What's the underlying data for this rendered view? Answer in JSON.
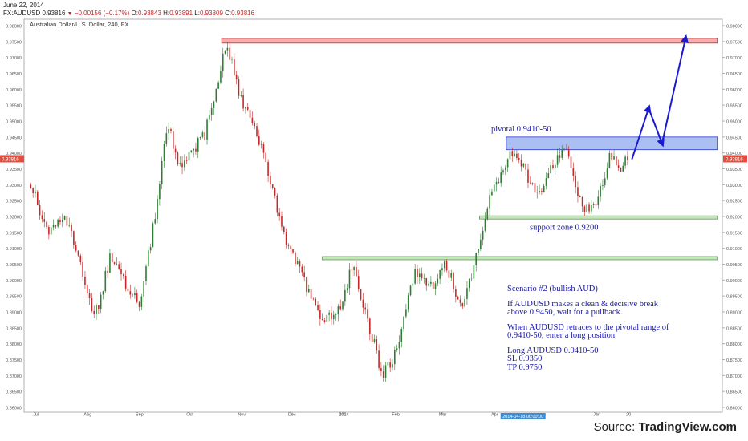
{
  "header": {
    "date": "June 22, 2014",
    "symbol": "FX:AUDUSD",
    "last": "0.93816",
    "change": "−0.00156 (−0.17%)",
    "open_label": "O:",
    "open": "0.93843",
    "high_label": "H:",
    "high": "0.93891",
    "low_label": "L:",
    "low": "0.93809",
    "close_label": "C:",
    "close": "0.93816"
  },
  "chart_data": {
    "type": "candlestick",
    "title": "Australian Dollar/U.S. Dollar, 240, FX",
    "y_range": [
      0.865,
      0.98
    ],
    "y_ticks": [
      "0.98000",
      "0.97500",
      "0.97000",
      "0.96500",
      "0.96000",
      "0.95500",
      "0.95000",
      "0.94500",
      "0.94000",
      "0.93500",
      "0.93000",
      "0.92500",
      "0.92000",
      "0.91500",
      "0.91000",
      "0.90500",
      "0.90000",
      "0.89500",
      "0.89000",
      "0.88500",
      "0.88000",
      "0.87500",
      "0.87000",
      "0.86500",
      "0.86000"
    ],
    "x_ticks": [
      "Jul",
      "Aug",
      "Sep",
      "Oct",
      "Nov",
      "Dec",
      "2014",
      "Feb",
      "Mar",
      "Apr",
      "Jun",
      "20"
    ],
    "last_price_label": "0.93816",
    "last_price": 0.93816,
    "cursor_date_label": "2014-04-18 00:00:00",
    "price_path": [
      [
        "2013-06-28",
        0.93
      ],
      [
        "2013-07-08",
        0.915
      ],
      [
        "2013-07-18",
        0.92
      ],
      [
        "2013-07-25",
        0.91
      ],
      [
        "2013-08-05",
        0.888
      ],
      [
        "2013-08-15",
        0.908
      ],
      [
        "2013-08-22",
        0.9
      ],
      [
        "2013-09-01",
        0.892
      ],
      [
        "2013-09-10",
        0.92
      ],
      [
        "2013-09-18",
        0.95
      ],
      [
        "2013-09-24",
        0.935
      ],
      [
        "2013-10-01",
        0.94
      ],
      [
        "2013-10-10",
        0.946
      ],
      [
        "2013-10-23",
        0.975
      ],
      [
        "2013-10-30",
        0.96
      ],
      [
        "2013-11-06",
        0.95
      ],
      [
        "2013-11-15",
        0.938
      ],
      [
        "2013-11-25",
        0.915
      ],
      [
        "2013-12-04",
        0.905
      ],
      [
        "2013-12-12",
        0.895
      ],
      [
        "2013-12-20",
        0.887
      ],
      [
        "2013-12-31",
        0.893
      ],
      [
        "2014-01-06",
        0.905
      ],
      [
        "2014-01-13",
        0.892
      ],
      [
        "2014-01-24",
        0.87
      ],
      [
        "2014-02-02",
        0.878
      ],
      [
        "2014-02-12",
        0.902
      ],
      [
        "2014-02-22",
        0.898
      ],
      [
        "2014-03-03",
        0.905
      ],
      [
        "2014-03-12",
        0.892
      ],
      [
        "2014-03-20",
        0.905
      ],
      [
        "2014-03-28",
        0.925
      ],
      [
        "2014-04-08",
        0.935
      ],
      [
        "2014-04-10",
        0.942
      ],
      [
        "2014-04-18",
        0.935
      ],
      [
        "2014-04-28",
        0.927
      ],
      [
        "2014-05-08",
        0.938
      ],
      [
        "2014-05-14",
        0.941
      ],
      [
        "2014-05-24",
        0.922
      ],
      [
        "2014-06-02",
        0.926
      ],
      [
        "2014-06-09",
        0.94
      ],
      [
        "2014-06-15",
        0.935
      ],
      [
        "2014-06-20",
        0.938
      ]
    ],
    "zones": [
      {
        "name": "resistance",
        "y_range": [
          0.9745,
          0.976
        ],
        "x_range": [
          "2013-10-20",
          "2014-08-12"
        ],
        "color": "#f4a0a0"
      },
      {
        "name": "pivotal",
        "label": "pivotal 0.9410-50",
        "y_range": [
          0.941,
          0.945
        ],
        "x_range": [
          "2014-04-08",
          "2014-08-12"
        ],
        "color": "#9db4f0"
      },
      {
        "name": "support",
        "label": "support zone 0.9200",
        "y_range": [
          0.9194,
          0.9202
        ],
        "x_range": [
          "2014-03-23",
          "2014-08-12"
        ],
        "color": "#b8e0b0"
      },
      {
        "name": "support-2",
        "y_range": [
          0.9066,
          0.9074
        ],
        "x_range": [
          "2013-12-19",
          "2014-08-12"
        ],
        "color": "#b8e0b0"
      }
    ],
    "projection": [
      [
        "2014-06-22",
        0.938
      ],
      [
        "2014-07-02",
        0.954
      ],
      [
        "2014-07-10",
        0.943
      ],
      [
        "2014-07-24",
        0.976
      ]
    ]
  },
  "note": {
    "title": "Scenario #2 (bullish AUD)",
    "line1": "If AUDUSD makes a clean & decisive break",
    "line2": "above 0.9450, wait for a pullback.",
    "line3": "When AUDUSD retraces to the pivotal range of",
    "line4": "0.9410-50, enter a long position",
    "line5": "Long AUDUSD 0.9410-50",
    "line6": "SL 0.9350",
    "line7": "TP 0.9750"
  },
  "source": {
    "prefix": "Source: ",
    "brand": "TradingView.com"
  },
  "colors": {
    "up": "#2e7d32",
    "down": "#c62828",
    "projection": "#1a1ad0",
    "last_price_badge": "#e74c3c",
    "cursor_badge": "#3b8fd8"
  }
}
